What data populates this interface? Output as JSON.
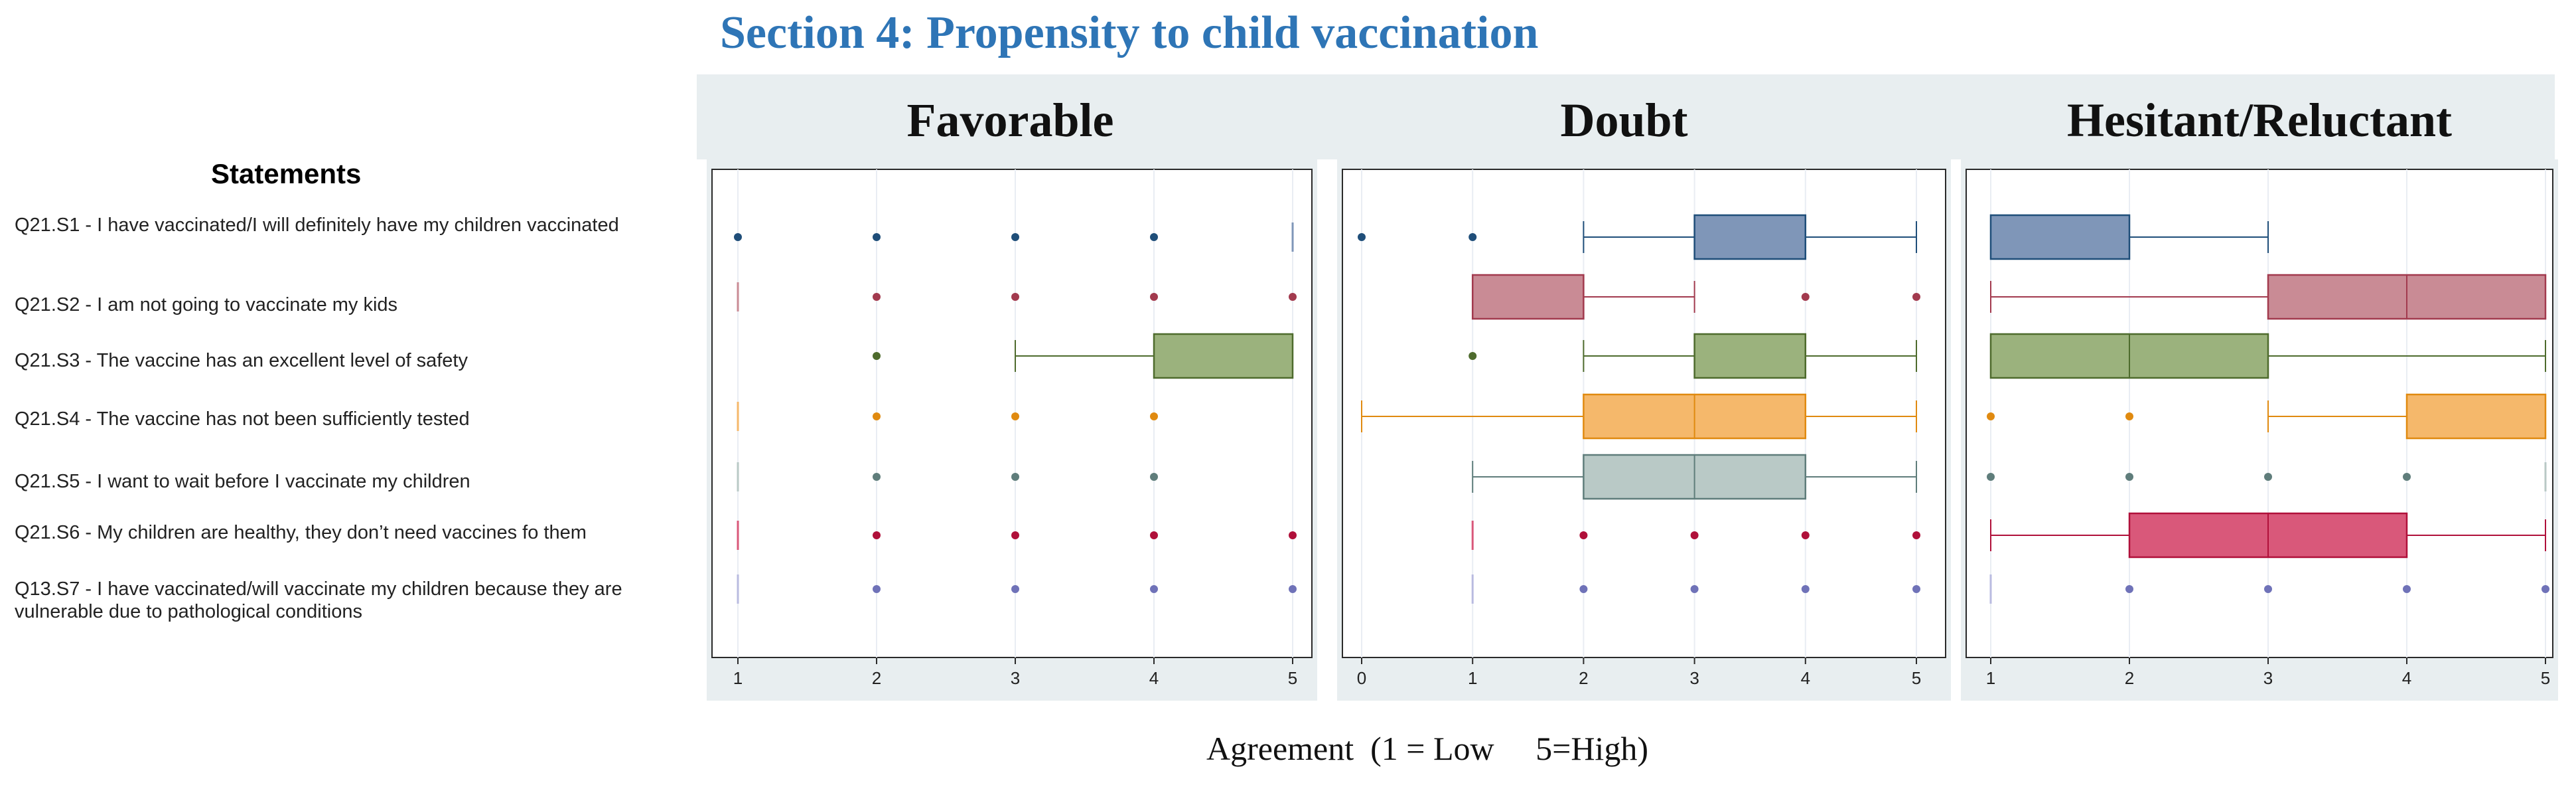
{
  "section_title": "Section 4: Propensity to child vaccination",
  "statements_heading": "Statements",
  "axis_caption": "Agreement  (1 = Low     5=High)",
  "statements": [
    {
      "id": "S1",
      "text": "Q21.S1 - I have vaccinated/I will definitely have my children vaccinated",
      "color": "#1f4e79",
      "fill": "#7f96b8"
    },
    {
      "id": "S2",
      "text": "Q21.S2 - I am not going to vaccinate my kids",
      "color": "#a23a4e",
      "fill": "#c98b95"
    },
    {
      "id": "S3",
      "text": "Q21.S3 - The vaccine has an excellent level of safety",
      "color": "#4e6b2d",
      "fill": "#9bb27d"
    },
    {
      "id": "S4",
      "text": "Q21.S4 - The vaccine has not been sufficiently tested",
      "color": "#e08a10",
      "fill": "#f5b86b"
    },
    {
      "id": "S5",
      "text": "Q21.S5 - I want to wait before I vaccinate my children",
      "color": "#5f7d7b",
      "fill": "#b9c9c6"
    },
    {
      "id": "S6",
      "text": "Q21.S6 - My children are healthy, they don’t need vaccines fo them",
      "color": "#b0103a",
      "fill": "#d9587a"
    },
    {
      "id": "S7",
      "text": "Q13.S7 - I have vaccinated/will vaccinate my children because they are vulnerable due to pathological conditions",
      "color": "#6f72b8",
      "fill": "#b9bbe0"
    }
  ],
  "chart_data": [
    {
      "type": "boxplot",
      "title": "Favorable",
      "xlim": [
        1,
        5
      ],
      "ticks": [
        1,
        2,
        3,
        4,
        5
      ],
      "rows": [
        {
          "statement": "S1",
          "whisker_low": 5,
          "q1": 5,
          "median": 5,
          "q3": 5,
          "whisker_high": 5,
          "outliers": [
            1,
            2,
            3,
            4
          ]
        },
        {
          "statement": "S2",
          "whisker_low": 1,
          "q1": 1,
          "median": 1,
          "q3": 1,
          "whisker_high": 1,
          "outliers": [
            2,
            3,
            4,
            5
          ]
        },
        {
          "statement": "S3",
          "whisker_low": 3,
          "q1": 4,
          "median": 5,
          "q3": 5,
          "whisker_high": 5,
          "outliers": [
            2
          ]
        },
        {
          "statement": "S4",
          "whisker_low": 1,
          "q1": 1,
          "median": 1,
          "q3": 1,
          "whisker_high": 1,
          "outliers": [
            2,
            3,
            4
          ]
        },
        {
          "statement": "S5",
          "whisker_low": 1,
          "q1": 1,
          "median": 1,
          "q3": 1,
          "whisker_high": 1,
          "outliers": [
            2,
            3,
            4
          ]
        },
        {
          "statement": "S6",
          "whisker_low": 1,
          "q1": 1,
          "median": 1,
          "q3": 1,
          "whisker_high": 1,
          "outliers": [
            2,
            3,
            4,
            5
          ]
        },
        {
          "statement": "S7",
          "whisker_low": 1,
          "q1": 1,
          "median": 1,
          "q3": 1,
          "whisker_high": 1,
          "outliers": [
            2,
            3,
            4,
            5
          ]
        }
      ]
    },
    {
      "type": "boxplot",
      "title": "Doubt",
      "xlim": [
        0,
        5
      ],
      "ticks": [
        0,
        1,
        2,
        3,
        4,
        5
      ],
      "rows": [
        {
          "statement": "S1",
          "whisker_low": 2,
          "q1": 3,
          "median": 4,
          "q3": 4,
          "whisker_high": 5,
          "outliers": [
            0,
            1
          ]
        },
        {
          "statement": "S2",
          "whisker_low": 1,
          "q1": 1,
          "median": 2,
          "q3": 2,
          "whisker_high": 3,
          "outliers": [
            4,
            5
          ]
        },
        {
          "statement": "S3",
          "whisker_low": 2,
          "q1": 3,
          "median": 4,
          "q3": 4,
          "whisker_high": 5,
          "outliers": [
            1
          ]
        },
        {
          "statement": "S4",
          "whisker_low": 0,
          "q1": 2,
          "median": 3,
          "q3": 4,
          "whisker_high": 5,
          "outliers": []
        },
        {
          "statement": "S5",
          "whisker_low": 1,
          "q1": 2,
          "median": 3,
          "q3": 4,
          "whisker_high": 5,
          "outliers": []
        },
        {
          "statement": "S6",
          "whisker_low": 1,
          "q1": 1,
          "median": 1,
          "q3": 1,
          "whisker_high": 1,
          "outliers": [
            2,
            3,
            4,
            5
          ]
        },
        {
          "statement": "S7",
          "whisker_low": 1,
          "q1": 1,
          "median": 1,
          "q3": 1,
          "whisker_high": 1,
          "outliers": [
            2,
            3,
            4,
            5
          ]
        }
      ]
    },
    {
      "type": "boxplot",
      "title": "Hesitant/Reluctant",
      "xlim": [
        1,
        5
      ],
      "ticks": [
        1,
        2,
        3,
        4,
        5
      ],
      "rows": [
        {
          "statement": "S1",
          "whisker_low": 1,
          "q1": 1,
          "median": 1,
          "q3": 2,
          "whisker_high": 3,
          "outliers": []
        },
        {
          "statement": "S2",
          "whisker_low": 1,
          "q1": 3,
          "median": 4,
          "q3": 5,
          "whisker_high": 5,
          "outliers": []
        },
        {
          "statement": "S3",
          "whisker_low": 1,
          "q1": 1,
          "median": 2,
          "q3": 3,
          "whisker_high": 5,
          "outliers": []
        },
        {
          "statement": "S4",
          "whisker_low": 3,
          "q1": 4,
          "median": 5,
          "q3": 5,
          "whisker_high": 5,
          "outliers": [
            1,
            2
          ]
        },
        {
          "statement": "S5",
          "whisker_low": 5,
          "q1": 5,
          "median": 5,
          "q3": 5,
          "whisker_high": 5,
          "outliers": [
            1,
            2,
            3,
            4
          ]
        },
        {
          "statement": "S6",
          "whisker_low": 1,
          "q1": 2,
          "median": 3,
          "q3": 4,
          "whisker_high": 5,
          "outliers": []
        },
        {
          "statement": "S7",
          "whisker_low": 1,
          "q1": 1,
          "median": 1,
          "q3": 1,
          "whisker_high": 1,
          "outliers": [
            2,
            3,
            4,
            5
          ]
        }
      ]
    }
  ]
}
